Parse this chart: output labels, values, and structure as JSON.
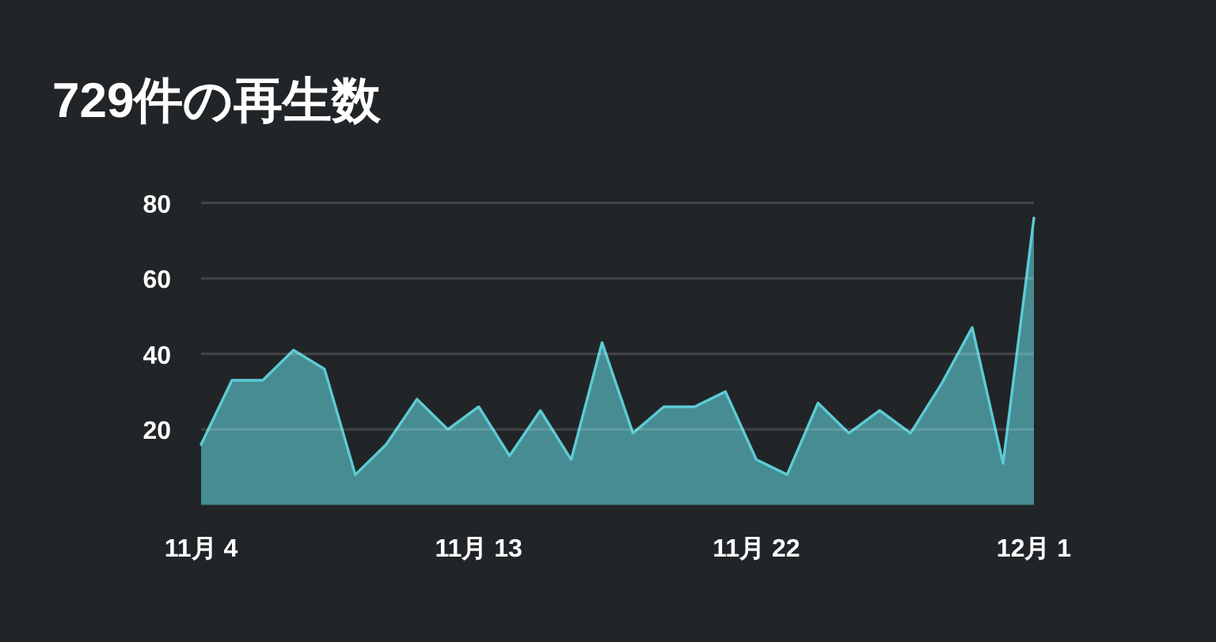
{
  "chart_data": {
    "type": "area",
    "title": "729件の再生数",
    "categories": [
      "11月 4",
      null,
      null,
      null,
      null,
      null,
      null,
      null,
      null,
      "11月 13",
      null,
      null,
      null,
      null,
      null,
      null,
      null,
      null,
      "11月 22",
      null,
      null,
      null,
      null,
      null,
      null,
      null,
      null,
      "12月 1"
    ],
    "values": [
      16,
      33,
      33,
      41,
      36,
      8,
      16,
      28,
      20,
      26,
      13,
      25,
      12,
      43,
      19,
      26,
      26,
      30,
      12,
      8,
      27,
      19,
      25,
      19,
      32,
      47,
      11,
      76
    ],
    "color": "#5ccbd5",
    "ylim": [
      0,
      80
    ],
    "yticks": [
      20,
      40,
      60,
      80
    ],
    "grid": "y"
  }
}
